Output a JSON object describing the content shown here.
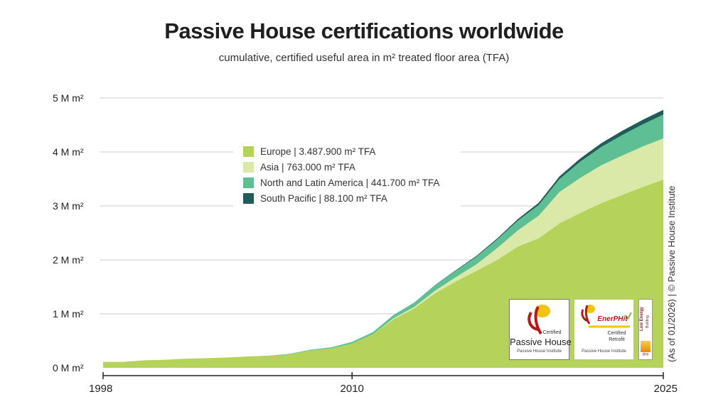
{
  "title": "Passive House certifications worldwide",
  "subtitle": "cumulative, certified useful area in m² treated floor area (TFA)",
  "credit": "(As of 01/2026) | © Passive House Institute",
  "logos": {
    "passive_house": {
      "certified": "Certified",
      "name": "Passive House",
      "institute": "Passive House Institute"
    },
    "enerphit": {
      "name": "EnerPHit",
      "certified": "Certified",
      "retrofit": "Retrofit",
      "institute": "Passive House Institute"
    },
    "low_energy": {
      "line1": "Low Energy",
      "line2": "Building",
      "mark": "PHI"
    }
  },
  "colors": {
    "europe": "#b5d35a",
    "asia": "#dbe9a8",
    "north_latin_america": "#5fbf94",
    "south_pacific": "#1f5c5a",
    "grid": "#cccccc"
  },
  "chart_data": {
    "type": "area",
    "stacked": true,
    "title": "Passive House certifications worldwide",
    "subtitle": "cumulative, certified useful area in m² treated floor area (TFA)",
    "xlabel": "",
    "ylabel": "",
    "x_ticks": [
      "1998",
      "2010",
      "2025"
    ],
    "y_ticks": [
      "0 M m²",
      "1 M m²",
      "2 M m²",
      "3 M m²",
      "4 M m²",
      "5 M m²"
    ],
    "ylim": [
      0,
      5000000
    ],
    "xlim": [
      1998,
      2025
    ],
    "grid": "horizontal",
    "legend_position": "top-center",
    "x": [
      1998,
      1999,
      2000,
      2001,
      2002,
      2003,
      2004,
      2005,
      2006,
      2007,
      2008,
      2009,
      2010,
      2011,
      2012,
      2013,
      2014,
      2015,
      2016,
      2017,
      2018,
      2019,
      2020,
      2021,
      2022,
      2023,
      2024,
      2025
    ],
    "series": [
      {
        "name": "Europe | 3.487.900 m² TFA",
        "color": "#b5d35a",
        "values": [
          110000,
          110000,
          140000,
          150000,
          170000,
          180000,
          190000,
          210000,
          220000,
          250000,
          320000,
          360000,
          450000,
          620000,
          900000,
          1100000,
          1380000,
          1600000,
          1800000,
          2000000,
          2250000,
          2400000,
          2680000,
          2870000,
          3050000,
          3200000,
          3350000,
          3487900
        ]
      },
      {
        "name": "Asia | 763.000 m² TFA",
        "color": "#dbe9a8",
        "values": [
          0,
          0,
          0,
          0,
          0,
          0,
          0,
          0,
          0,
          0,
          0,
          0,
          0,
          0,
          20000,
          30000,
          50000,
          80000,
          120000,
          220000,
          300000,
          420000,
          580000,
          650000,
          700000,
          730000,
          750000,
          763000
        ]
      },
      {
        "name": "North and Latin America | 441.700 m² TFA",
        "color": "#5fbf94",
        "values": [
          0,
          0,
          0,
          0,
          0,
          0,
          0,
          0,
          5000,
          10000,
          15000,
          20000,
          30000,
          40000,
          60000,
          80000,
          100000,
          120000,
          140000,
          160000,
          180000,
          200000,
          240000,
          300000,
          340000,
          380000,
          410000,
          441700
        ]
      },
      {
        "name": "South Pacific | 88.100 m² TFA",
        "color": "#1f5c5a",
        "values": [
          0,
          0,
          0,
          0,
          0,
          0,
          0,
          0,
          0,
          0,
          0,
          0,
          0,
          0,
          0,
          0,
          5000,
          10000,
          15000,
          20000,
          30000,
          40000,
          50000,
          60000,
          70000,
          78000,
          84000,
          88100
        ]
      }
    ]
  }
}
